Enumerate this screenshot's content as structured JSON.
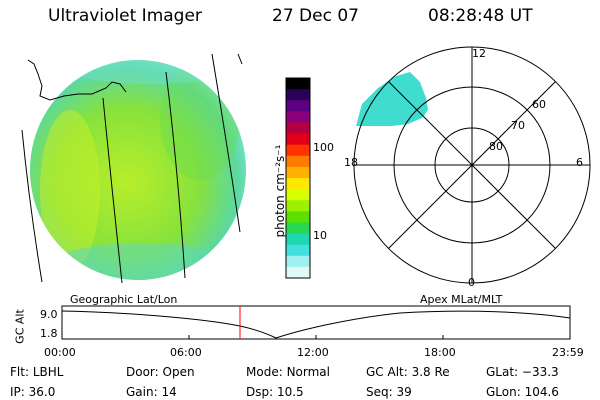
{
  "header": {
    "title": "Ultraviolet Imager",
    "date": "27 Dec 07",
    "time": "08:28:48 UT"
  },
  "colorbar": {
    "label": "photon cm⁻²s⁻¹",
    "ticks": [
      {
        "value": 100,
        "label": "100"
      },
      {
        "value": 10,
        "label": "10"
      }
    ],
    "colors": [
      "#000000",
      "#2b0057",
      "#5b0080",
      "#8a007a",
      "#b40040",
      "#e0001a",
      "#ff3300",
      "#ff7a00",
      "#ffb000",
      "#ffe800",
      "#d8ff00",
      "#9cf000",
      "#5ce000",
      "#28d850",
      "#20d8b0",
      "#40e0e0",
      "#a0f0f0",
      "#e0f8f8"
    ]
  },
  "polar": {
    "mlt_labels": {
      "top": "12",
      "left": "18",
      "right": "6",
      "bottom": "0"
    },
    "lat_labels": [
      "60",
      "70",
      "80"
    ]
  },
  "timeline": {
    "left_label": "Geographic Lat/Lon",
    "right_label": "Apex MLat/MLT",
    "y_axis_label": "GC Alt",
    "y_ticks": [
      "9.0",
      "1.8"
    ],
    "x_ticks": [
      "00:00",
      "06:00",
      "12:00",
      "18:00",
      "23:59"
    ],
    "marker_time": "08:28:48",
    "marker_color": "#ff0000"
  },
  "info_rows": [
    [
      {
        "label": "Flt: ",
        "value": "LBHL"
      },
      {
        "label": "Door: ",
        "value": "Open"
      },
      {
        "label": "Mode: ",
        "value": "Normal"
      },
      {
        "label": "GC Alt: ",
        "value": "3.8 Re"
      },
      {
        "label": "GLat: ",
        "value": "−33.3"
      }
    ],
    [
      {
        "label": "IP: ",
        "value": "36.0"
      },
      {
        "label": "Gain: ",
        "value": "14"
      },
      {
        "label": "Dsp: ",
        "value": "10.5"
      },
      {
        "label": "Seq: ",
        "value": "39"
      },
      {
        "label": "GLon: ",
        "value": "104.6"
      }
    ]
  ]
}
